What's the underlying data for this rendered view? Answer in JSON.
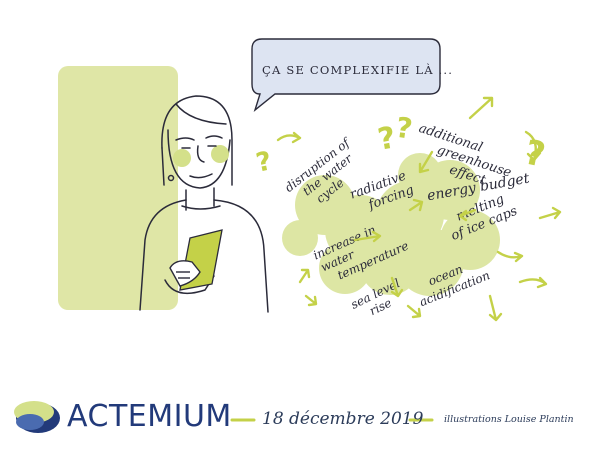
{
  "speech_bubble": {
    "text": "ÇA SE COMPLEXIFIE LÀ ..."
  },
  "concepts": [
    {
      "id": "disruption",
      "lines": [
        "disruption of",
        "the water",
        "cycle"
      ]
    },
    {
      "id": "radiative",
      "lines": [
        "radiative",
        "forcing"
      ]
    },
    {
      "id": "greenhouse",
      "lines": [
        "additional",
        "greenhouse",
        "effect"
      ]
    },
    {
      "id": "energy",
      "lines": [
        "energy budget"
      ]
    },
    {
      "id": "icecaps",
      "lines": [
        "melting",
        "of ice caps"
      ]
    },
    {
      "id": "water-temp",
      "lines": [
        "increase in",
        "water",
        "temperature"
      ]
    },
    {
      "id": "sea-level",
      "lines": [
        "sea level",
        "rise"
      ]
    },
    {
      "id": "ocean",
      "lines": [
        "ocean",
        "acidification"
      ]
    }
  ],
  "footer": {
    "brand": "ACTEMIUM",
    "date": "18 décembre 2019",
    "credit": "illustrations Louise Plantin"
  },
  "colors": {
    "accent_green": "#d4e08a",
    "brand_blue": "#223a7a",
    "bubble_fill": "#dde4f2",
    "ink": "#2b2b3a"
  }
}
